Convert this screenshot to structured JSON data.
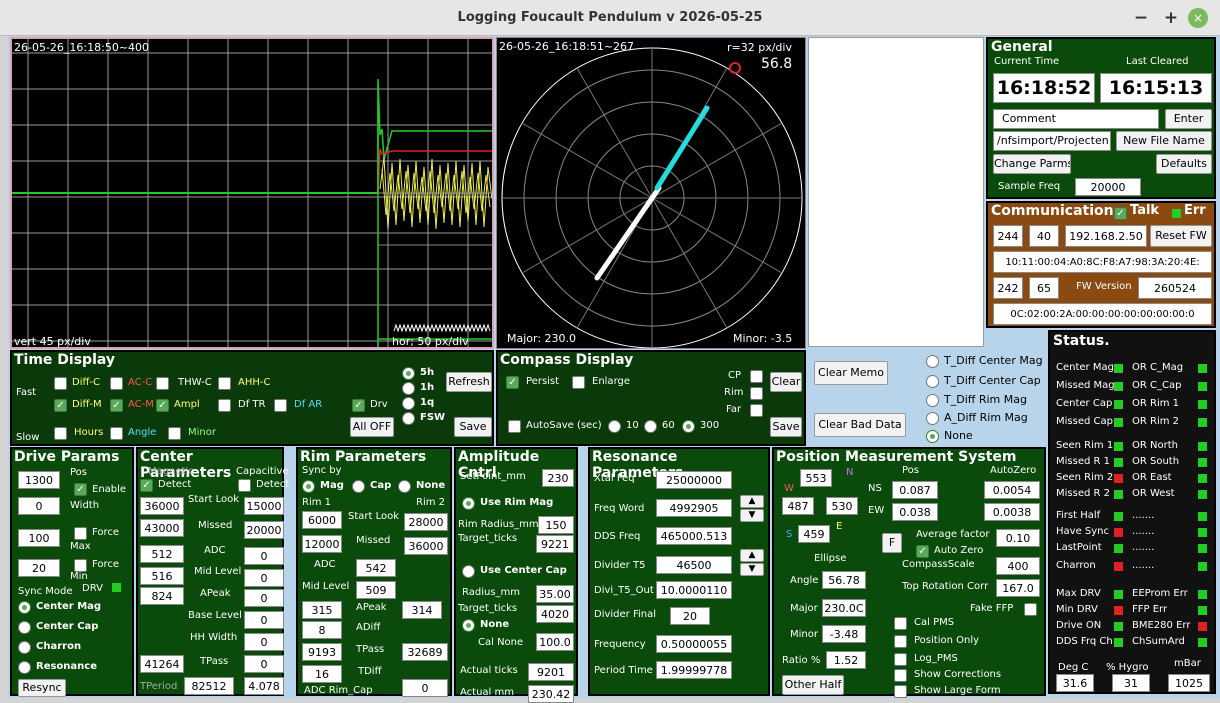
{
  "window": {
    "title": "Logging Foucault Pendulum v 2026-05-25",
    "minimize": "−",
    "maximize": "+",
    "close": "×"
  },
  "plot1": {
    "stamp": "26-05-26_16:18:50~400",
    "vert": "vert 45 px/div",
    "hor": "hor; 50 px/div"
  },
  "plot2": {
    "stamp": "26-05-26_16:18:51~267",
    "scale": "r=32 px/div",
    "value": "56.8",
    "major": "Major: 230.0",
    "minor": "Minor: -3.5"
  },
  "general": {
    "title": "General",
    "current_time_label": "Current Time",
    "last_cleared_label": "Last Cleared",
    "current_time": "16:18:52",
    "last_cleared": "16:15:13",
    "comment": "Comment",
    "enter": "Enter",
    "path": "/nfsimport/Projecten",
    "new_file": "New File Name",
    "change_parms": "Change Parms",
    "defaults": "Defaults",
    "sample_freq_label": "Sample Freq",
    "sample_freq": "20000"
  },
  "comm": {
    "title": "Communication",
    "talk": "Talk",
    "err": "Err",
    "v1": "244",
    "v2": "40",
    "ip": "192.168.2.50",
    "reset_fw": "Reset FW",
    "mac1": "10:11:00:04:A0:8C:F8:A7:98:3A:20:4E:",
    "v3": "242",
    "v4": "65",
    "fw_label": "FW Version",
    "fw": "260524",
    "mac2": "0C:02:00:2A:00:00:00:00:00:00:00:0"
  },
  "time_display": {
    "title": "Time Display",
    "fast": "Fast",
    "slow": "Slow",
    "diff_c": "Diff-C",
    "ac_c": "AC-C",
    "thw_c": "THW-C",
    "ahh_c": "AHH-C",
    "diff_m": "Diff-M",
    "ac_m": "AC-M",
    "ampl": "Ampl",
    "df_tr": "Df TR",
    "df_ar": "Df AR",
    "drv": "Drv",
    "hours": "Hours",
    "angle": "Angle",
    "minor": "Minor",
    "r5h": "5h",
    "r1h": "1h",
    "r1q": "1q",
    "rfsw": "FSW",
    "refresh": "Refresh",
    "all_off": "All OFF",
    "save": "Save"
  },
  "compass": {
    "title": "Compass Display",
    "persist": "Persist",
    "enlarge": "Enlarge",
    "cp": "CP",
    "rim": "Rim",
    "far": "Far",
    "clear": "Clear",
    "autosave": "AutoSave (sec)",
    "r10": "10",
    "r60": "60",
    "r300": "300",
    "save": "Save"
  },
  "memo": {
    "clear_memo": "Clear Memo",
    "clear_bad": "Clear Bad Data"
  },
  "tdiff": {
    "o1": "T_Diff Center Mag",
    "o2": "T_Diff Center Cap",
    "o3": "T_Diff Rim Mag",
    "o4": "A_Diff Rim Mag",
    "o5": "None"
  },
  "status": {
    "title": "Status.",
    "left": [
      "Center Mag",
      "Missed Mag",
      "Center Cap",
      "Missed Cap",
      "Seen Rim 1",
      "Missed R 1",
      "Seen Rim 2",
      "Missed R 2",
      "First Half",
      "Have Sync",
      "LastPoint",
      "Charron",
      "Max DRV",
      "Min DRV",
      "Drive ON",
      "DDS Frq Ch"
    ],
    "right": [
      "OR C_Mag",
      "OR C_Cap",
      "OR Rim 1",
      "OR Rim 2",
      "OR North",
      "OR South",
      "OR East",
      "OR West",
      ".......",
      ".......",
      ".......",
      ".......",
      "EEProm Err",
      "FFP Err",
      "BME280 Err",
      "ChSumArd"
    ],
    "deg_label": "Deg C",
    "hygro_label": "% Hygro",
    "mbar_label": "mBar",
    "deg": "31.6",
    "hygro": "31",
    "mbar": "1025"
  },
  "drive": {
    "title": "Drive Params",
    "pos": "Pos",
    "enable": "Enable",
    "width": "Width",
    "force_max1": "Force",
    "force_max2": "Max",
    "force_min1": "Force",
    "force_min2": "Min",
    "v1300": "1300",
    "v0": "0",
    "v100": "100",
    "v20": "20",
    "sync_mode": "Sync Mode",
    "drv": "DRV",
    "center_mag": "Center Mag",
    "center_cap": "Center Cap",
    "charron": "Charron",
    "resonance": "Resonance",
    "resync": "Resync"
  },
  "center": {
    "title": "Center Parameters",
    "magnetic": "Magnetic",
    "capacitive": "Capacitive",
    "detect1": "Detect",
    "detect2": "Detect",
    "start_look": "Start Look",
    "missed": "Missed",
    "adc": "ADC",
    "mid_level": "Mid Level",
    "apeak": "APeak",
    "base_level": "Base Level",
    "hh_width": "HH Width",
    "tpass": "TPass",
    "tperiod": "TPeriod",
    "m1": "36000",
    "c1": "15000",
    "m2": "43000",
    "c2": "20000",
    "m3": "512",
    "c3": "0",
    "m4": "516",
    "c4": "0",
    "m5": "824",
    "c5": "0",
    "c6": "0",
    "c7": "0",
    "m8": "41264",
    "c8": "0",
    "m9": "82512",
    "c9": "4.078"
  },
  "rim": {
    "title": "Rim Parameters",
    "sync_by": "Sync by",
    "mag": "Mag",
    "cap": "Cap",
    "none": "None",
    "rim1": "Rim 1",
    "rim2": "Rim 2",
    "start_look": "Start Look",
    "missed": "Missed",
    "adc": "ADC",
    "mid_level": "Mid Level",
    "apeak": "APeak",
    "adiff": "ADiff",
    "tpass": "TPass",
    "tdiff": "TDiff",
    "adc_rim_cap": "ADC Rim_Cap",
    "a1": "6000",
    "b1": "28000",
    "a2": "12000",
    "b2": "36000",
    "adc_v": "542",
    "mid_v": "509",
    "a3": "315",
    "b3": "314",
    "a4": "8",
    "a5": "9193",
    "b5": "32689",
    "a6": "16",
    "cap_v": "0"
  },
  "amp": {
    "title": "Amplitude Cntrl",
    "setpoint": "SetPoint_mm",
    "setpoint_v": "230",
    "use_rim_mag": "Use Rim Mag",
    "rim_radius": "Rim Radius_mm",
    "rim_radius_v": "150",
    "target_ticks": "Target_ticks",
    "target_ticks_v": "9221",
    "use_center_cap": "Use Center Cap",
    "radius": "Radius_mm",
    "radius_v": "35.00",
    "target_ticks2": "Target_ticks",
    "target_ticks2_v": "4020",
    "none": "None",
    "cal_none": "Cal None",
    "cal_none_v": "100.0",
    "actual_ticks": "Actual ticks",
    "actual_ticks_v": "9201",
    "actual_mm": "Actual mm",
    "actual_mm_v": "230.42"
  },
  "res": {
    "title": "Resonance Parameters",
    "xtal": "Xtal Feq",
    "xtal_v": "25000000",
    "freq_word": "Freq Word",
    "freq_word_v": "4992905",
    "dds": "DDS Freq",
    "dds_v": "465000.513",
    "div_t5": "Divider T5",
    "div_t5_v": "46500",
    "divi_out": "Divi_T5_Out",
    "divi_out_v": "10.0000110",
    "div_final": "Divider Final",
    "div_final_v": "20",
    "freq": "Frequency",
    "freq_v": "0.50000055",
    "period": "Period Time",
    "period_v": "1.99999778"
  },
  "pos": {
    "title": "Position Measurement System",
    "n": "N",
    "w": "W",
    "s": "S",
    "e": "E",
    "ns": "NS",
    "ew": "EW",
    "pos": "Pos",
    "autozero": "AutoZero",
    "nv": "553",
    "wv": "487",
    "ev": "530",
    "sv": "459",
    "ns_pos": "0.087",
    "ns_az": "0.0054",
    "ew_pos": "0.038",
    "ew_az": "0.0038",
    "f": "F",
    "avg_factor": "Average factor",
    "avg_v": "0.10",
    "auto_zero": "Auto Zero",
    "ellipse": "Ellipse",
    "compass_scale": "CompassScale",
    "compass_v": "400",
    "angle": "Angle",
    "angle_v": "56.78",
    "top_rot": "Top Rotation Corr",
    "top_rot_v": "167.0",
    "major": "Major",
    "major_v": "230.0C",
    "fake_ffp": "Fake FFP",
    "minor": "Minor",
    "minor_v": "-3.48",
    "cal_pms": "Cal PMS",
    "position_only": "Position Only",
    "ratio": "Ratio %",
    "ratio_v": "1.52",
    "log_pms": "Log_PMS",
    "show_corr": "Show Corrections",
    "other_half": "Other Half",
    "show_large": "Show Large Form"
  }
}
